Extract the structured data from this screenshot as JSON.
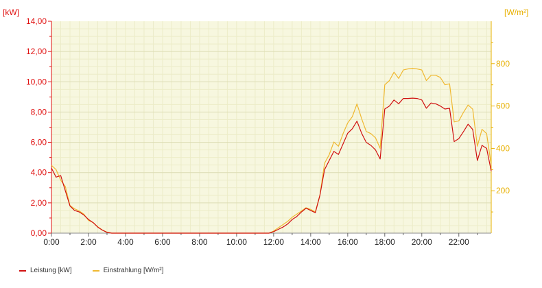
{
  "chart_data": {
    "type": "line",
    "x_unit": "time of day",
    "x_ticks": [
      "0:00",
      "2:00",
      "4:00",
      "6:00",
      "8:00",
      "10:00",
      "12:00",
      "14:00",
      "16:00",
      "18:00",
      "20:00",
      "22:00"
    ],
    "x": [
      0,
      0.25,
      0.5,
      0.75,
      1,
      1.25,
      1.5,
      1.75,
      2,
      2.25,
      2.5,
      2.75,
      3,
      3.25,
      3.5,
      3.75,
      4,
      4.25,
      4.5,
      4.75,
      5,
      5.25,
      5.5,
      5.75,
      6,
      6.25,
      6.5,
      6.75,
      7,
      7.25,
      7.5,
      7.75,
      8,
      8.25,
      8.5,
      8.75,
      9,
      9.25,
      9.5,
      9.75,
      10,
      10.25,
      10.5,
      10.75,
      11,
      11.25,
      11.5,
      11.75,
      12,
      12.25,
      12.5,
      12.75,
      13,
      13.25,
      13.5,
      13.75,
      14,
      14.25,
      14.5,
      14.75,
      15,
      15.25,
      15.5,
      15.75,
      16,
      16.25,
      16.5,
      16.75,
      17,
      17.25,
      17.5,
      17.75,
      18,
      18.25,
      18.5,
      18.75,
      19,
      19.25,
      19.5,
      19.75,
      20,
      20.25,
      20.5,
      20.75,
      21,
      21.25,
      21.5,
      21.75,
      22,
      22.25,
      22.5,
      22.75,
      23,
      23.25,
      23.5,
      23.75
    ],
    "left_axis": {
      "unit_label": "[kW]",
      "range": [
        0,
        14
      ],
      "ticks": [
        "0,00",
        "2,00",
        "4,00",
        "6,00",
        "8,00",
        "10,00",
        "12,00",
        "14,00"
      ],
      "color": "#e01010"
    },
    "right_axis": {
      "unit_label": "[W/m²]",
      "range": [
        0,
        1000
      ],
      "ticks": [
        "200",
        "400",
        "600",
        "800"
      ],
      "tick_values": [
        200,
        400,
        600,
        800
      ],
      "color": "#e8b000"
    },
    "grid": true,
    "legend_placement": "bottom-left",
    "series": [
      {
        "name": "Leistung [kW]",
        "axis": "left",
        "color": "#d01010",
        "values": [
          4.3,
          3.7,
          3.8,
          2.8,
          1.8,
          1.5,
          1.4,
          1.2,
          0.9,
          0.7,
          0.4,
          0.2,
          0.05,
          0,
          0,
          0,
          0,
          0,
          0,
          0,
          0,
          0,
          0,
          0,
          0,
          0,
          0,
          0,
          0,
          0,
          0,
          0,
          0,
          0,
          0,
          0,
          0,
          0,
          0,
          0,
          0,
          0,
          0,
          0,
          0,
          0,
          0,
          0,
          0.1,
          0.25,
          0.4,
          0.6,
          0.9,
          1.1,
          1.4,
          1.65,
          1.5,
          1.35,
          2.5,
          4.2,
          4.8,
          5.4,
          5.2,
          5.9,
          6.6,
          6.9,
          7.4,
          6.6,
          6,
          5.8,
          5.5,
          4.9,
          8.2,
          8.4,
          8.8,
          8.55,
          8.9,
          8.9,
          8.92,
          8.9,
          8.8,
          8.25,
          8.6,
          8.55,
          8.4,
          8.2,
          8.25,
          6.05,
          6.25,
          6.7,
          7.2,
          6.85,
          4.8,
          5.8,
          5.6,
          4.1
        ]
      },
      {
        "name": "Einstrahlung [W/m²]",
        "axis": "right",
        "color": "#f0b830",
        "values": [
          320,
          300,
          250,
          220,
          130,
          115,
          105,
          90,
          60,
          50,
          30,
          15,
          5,
          0,
          0,
          0,
          0,
          0,
          0,
          0,
          0,
          0,
          0,
          0,
          0,
          0,
          0,
          0,
          0,
          0,
          0,
          0,
          0,
          0,
          0,
          0,
          0,
          0,
          0,
          0,
          0,
          0,
          0,
          0,
          0,
          0,
          0,
          0,
          10,
          25,
          40,
          55,
          75,
          90,
          105,
          120,
          112,
          100,
          180,
          330,
          370,
          430,
          410,
          470,
          520,
          550,
          610,
          540,
          480,
          470,
          450,
          400,
          700,
          720,
          760,
          730,
          770,
          775,
          778,
          775,
          770,
          720,
          745,
          745,
          735,
          700,
          705,
          525,
          530,
          570,
          605,
          585,
          410,
          490,
          470,
          320
        ]
      }
    ]
  }
}
